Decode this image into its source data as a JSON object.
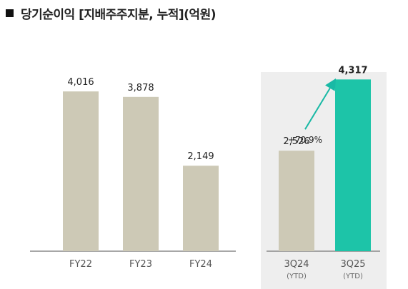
{
  "title": "당기순이익 [지배주주지분, 누적](억원)",
  "chart_data": {
    "type": "bar",
    "categories": [
      "FY22",
      "FY23",
      "FY24",
      "3Q24",
      "3Q25"
    ],
    "sublabels": [
      "",
      "",
      "",
      "(YTD)",
      "(YTD)"
    ],
    "values": [
      4016,
      3878,
      2149,
      2526,
      4317
    ],
    "value_labels": [
      "4,016",
      "3,878",
      "2,149",
      "2,526",
      "4,317"
    ],
    "ylim": [
      0,
      4700
    ],
    "growth_annotation": "+70.9%",
    "colors": {
      "bar": "#cdc9b6",
      "highlight_bar": "#1dc4a8",
      "highlight_panel": "#eeeeee",
      "arrow": "#19b9a5",
      "axis": "#8a8a8a"
    }
  }
}
